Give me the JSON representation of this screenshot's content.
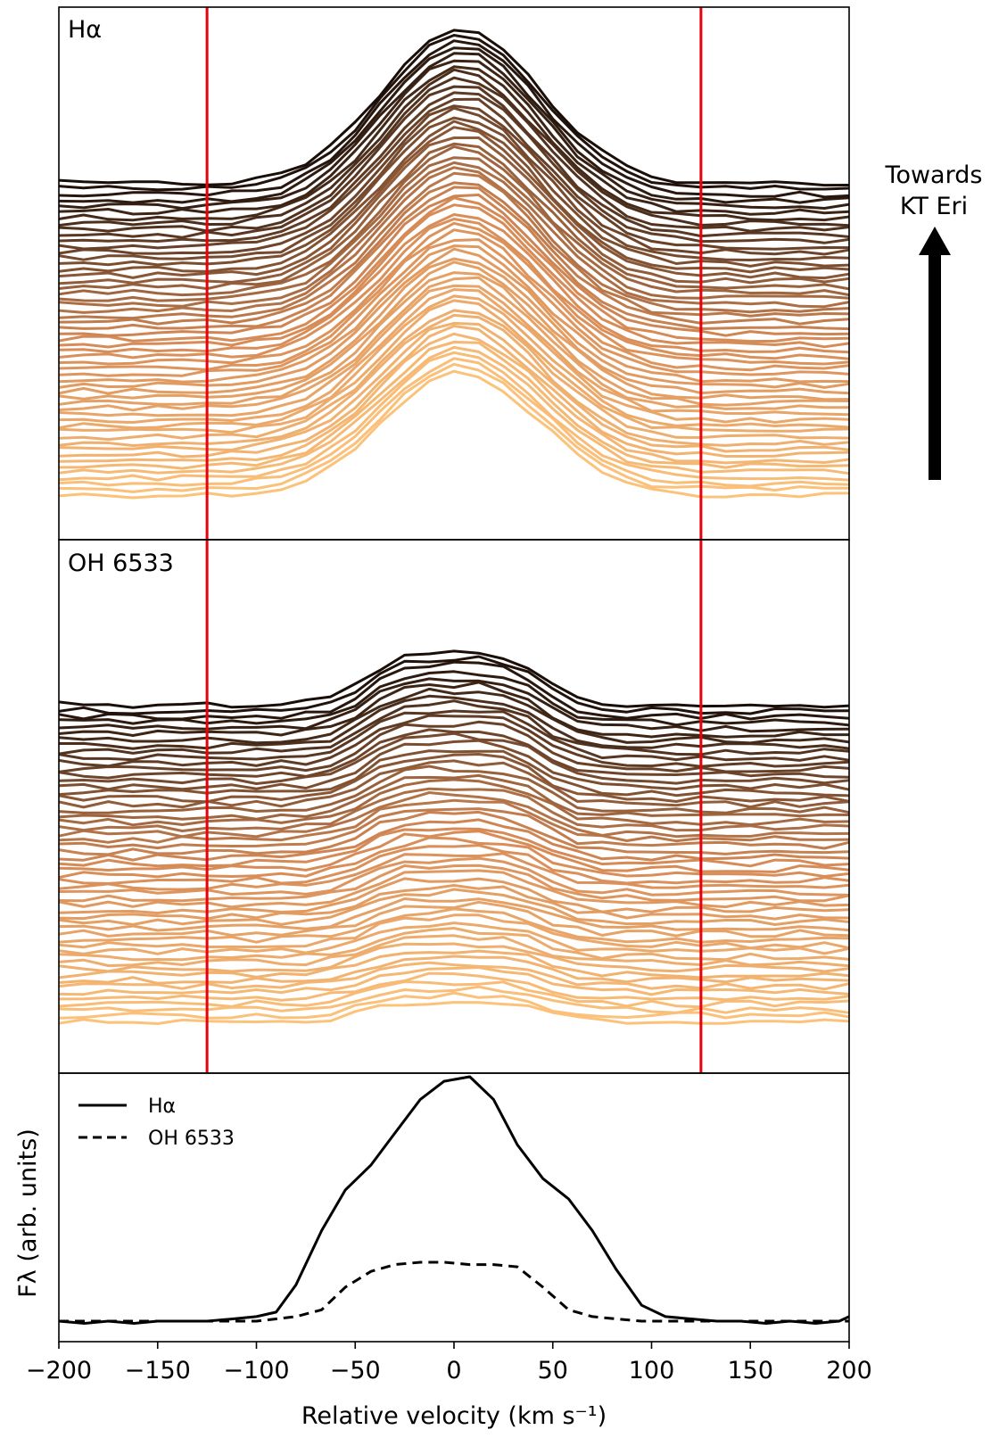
{
  "figure": {
    "annotation": {
      "line1": "Towards",
      "line2": "KT Eri"
    }
  },
  "chart_data": [
    {
      "type": "line",
      "panel": "top",
      "label": "Hα",
      "xlim": [
        -200,
        200
      ],
      "y_ticks_visible": false,
      "n_spectra": 55,
      "stacking": "vertically offset spectra; colour runs from light orange (bottom) to black (top)",
      "color_bottom": "#fcc27a",
      "color_top": "#1a0e08",
      "vlines": [
        -125,
        125
      ],
      "vline_color": "#e8000b",
      "profile_shape": "emission peak near +5 km/s, FWHM ~ 110 km/s, growing in amplitude toward the top spectra"
    },
    {
      "type": "line",
      "panel": "middle",
      "label": "OH 6533",
      "xlim": [
        -200,
        200
      ],
      "y_ticks_visible": false,
      "n_spectra": 55,
      "color_bottom": "#fcc27a",
      "color_top": "#1a0e08",
      "vlines": [
        -125,
        125
      ],
      "vline_color": "#e8000b",
      "profile_shape": "flat-topped emission from about -60 to +45 km/s"
    },
    {
      "type": "line",
      "panel": "bottom",
      "xlabel": "Relative velocity (km s⁻¹)",
      "ylabel": "Fλ (arb. units)",
      "xlim": [
        -200,
        200
      ],
      "ylim": [
        0,
        1.1
      ],
      "x_ticks": [
        -200,
        -150,
        -100,
        -50,
        0,
        50,
        100,
        150,
        200
      ],
      "legend_position": "upper-left",
      "series": [
        {
          "name": "Hα",
          "style": "solid",
          "x": [
            -200,
            -187,
            -175,
            -162,
            -150,
            -137,
            -125,
            -112,
            -100,
            -90,
            -80,
            -67,
            -55,
            -42,
            -30,
            -17,
            -5,
            8,
            20,
            32,
            45,
            58,
            70,
            82,
            95,
            107,
            120,
            133,
            145,
            158,
            170,
            183,
            195,
            200
          ],
          "y": [
            0.0,
            -0.01,
            0.0,
            -0.01,
            0.0,
            0.0,
            0.0,
            0.01,
            0.02,
            0.04,
            0.16,
            0.4,
            0.58,
            0.69,
            0.83,
            0.98,
            1.06,
            1.08,
            0.98,
            0.78,
            0.63,
            0.54,
            0.4,
            0.23,
            0.07,
            0.02,
            0.01,
            0.0,
            0.0,
            -0.01,
            0.0,
            -0.01,
            0.0,
            0.02
          ]
        },
        {
          "name": "OH 6533",
          "style": "dashed",
          "x": [
            -200,
            -187,
            -175,
            -162,
            -150,
            -137,
            -125,
            -112,
            -100,
            -90,
            -80,
            -67,
            -55,
            -42,
            -30,
            -17,
            -5,
            8,
            20,
            32,
            45,
            58,
            70,
            82,
            95,
            107,
            120,
            133,
            145,
            158,
            170,
            183,
            195,
            200
          ],
          "y": [
            0.0,
            0.0,
            0.0,
            0.0,
            0.0,
            0.0,
            0.0,
            0.0,
            0.0,
            0.01,
            0.02,
            0.05,
            0.15,
            0.22,
            0.25,
            0.26,
            0.26,
            0.25,
            0.25,
            0.24,
            0.15,
            0.05,
            0.02,
            0.01,
            0.0,
            0.0,
            0.0,
            0.0,
            0.0,
            0.0,
            0.0,
            0.0,
            0.0,
            0.0
          ]
        }
      ]
    }
  ]
}
